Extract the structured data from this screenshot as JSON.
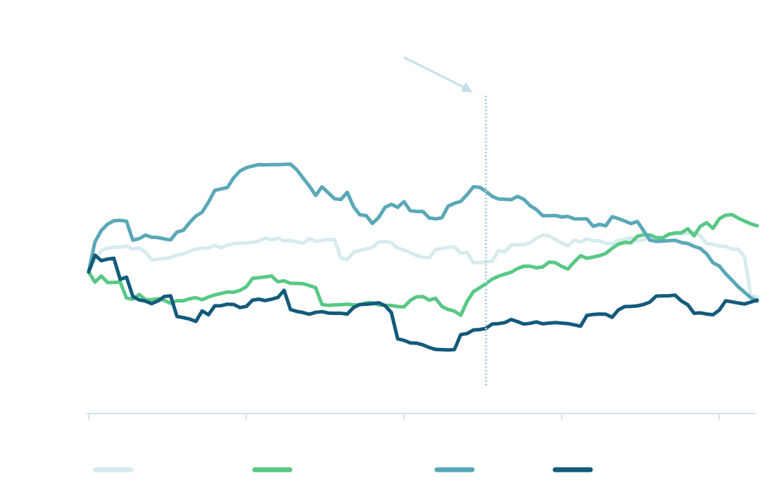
{
  "chart_data": {
    "type": "line",
    "title": "",
    "xlabel": "",
    "ylabel": "",
    "ylim": [
      0,
      100
    ],
    "x_tick_count": 5,
    "marker_x": 63.0,
    "legend_position": "bottom",
    "colors": {
      "axis": "#d2e2ee",
      "marker": "#a9cde2"
    },
    "series": [
      {
        "color": "#d6ebee",
        "x": [
          0,
          1,
          2,
          3,
          4,
          5,
          6,
          7,
          8,
          9,
          10,
          11,
          12,
          13,
          14,
          15,
          16,
          17,
          18,
          19,
          20,
          21,
          22,
          23,
          24,
          25,
          26,
          27,
          28,
          29,
          30,
          31,
          32,
          33,
          34,
          35,
          36,
          37,
          38,
          39,
          40,
          41,
          42,
          43,
          44,
          45,
          46,
          47,
          48,
          49,
          50,
          51,
          52,
          53,
          54,
          55,
          56,
          57,
          58,
          59,
          60,
          61,
          62,
          63,
          64,
          65,
          66,
          67,
          68,
          69,
          70,
          71,
          72,
          73,
          74,
          75,
          76,
          77,
          78,
          79,
          80,
          81,
          82,
          83,
          84,
          85,
          86,
          87,
          88,
          89,
          90,
          91,
          92,
          93,
          94,
          95,
          96,
          97,
          98,
          99,
          100,
          101,
          102,
          103,
          104,
          105,
          106
        ],
        "values": [
          59.2,
          64.5,
          68.1,
          69.2,
          69.6,
          69.6,
          70.0,
          68.8,
          69.3,
          67.5,
          64.1,
          64.5,
          64.8,
          65.2,
          66.3,
          66.7,
          67.9,
          68.7,
          69.1,
          69.2,
          70.3,
          69.3,
          70.4,
          71.0,
          71.2,
          71.3,
          71.7,
          72.0,
          73.4,
          72.6,
          73.3,
          72.2,
          72.3,
          71.8,
          71.2,
          73.2,
          72.0,
          72.3,
          72.8,
          72.7,
          65.0,
          64.4,
          67.4,
          68.2,
          68.8,
          69.4,
          71.8,
          71.9,
          71.5,
          69.1,
          68.4,
          67.3,
          66.1,
          65.3,
          65.2,
          68.5,
          69.0,
          69.5,
          69.7,
          67.0,
          67.5,
          63.1,
          63.1,
          63.4,
          63.7,
          68.1,
          67.6,
          70.4,
          70.6,
          70.6,
          71.4,
          73.3,
          74.6,
          74.3,
          72.7,
          71.3,
          70.1,
          72.5,
          71.7,
          73.1,
          72.2,
          72.2,
          71.3,
          70.9,
          72.4,
          72.8,
          73.6,
          72.1,
          72.8,
          73.3,
          72.8,
          73.3,
          75.2,
          75.1,
          75.2,
          75.2,
          76.0,
          74.3,
          71.0,
          70.8,
          70.1,
          69.9,
          68.7,
          68.7,
          65.6,
          49.3,
          48.7
        ]
      },
      {
        "color": "#58c885",
        "x": [
          0,
          1,
          2,
          3,
          4,
          5,
          6,
          7,
          8,
          9,
          10,
          11,
          12,
          13,
          14,
          15,
          16,
          17,
          18,
          19,
          20,
          21,
          22,
          23,
          24,
          25,
          26,
          27,
          28,
          29,
          30,
          31,
          32,
          33,
          34,
          35,
          36,
          37,
          38,
          39,
          40,
          41,
          42,
          43,
          44,
          45,
          46,
          47,
          48,
          49,
          50,
          51,
          52,
          53,
          54,
          55,
          56,
          57,
          58,
          59,
          60,
          61,
          62,
          63,
          64,
          65,
          66,
          67,
          68,
          69,
          70,
          71,
          72,
          73,
          74,
          75,
          76,
          77,
          78,
          79,
          80,
          81,
          82,
          83,
          84,
          85,
          86,
          87,
          88,
          89,
          90,
          91,
          92,
          93,
          94,
          95,
          96,
          97,
          98,
          99,
          100,
          101,
          102,
          103,
          104,
          105,
          106
        ],
        "values": [
          59.2,
          54.9,
          57.5,
          54.8,
          54.8,
          55.0,
          48.3,
          47.8,
          49.8,
          47.6,
          47.6,
          48.0,
          47.3,
          46.1,
          47.2,
          47.1,
          48.0,
          48.4,
          47.6,
          48.7,
          49.6,
          50.2,
          50.8,
          50.7,
          51.5,
          53.0,
          56.5,
          56.8,
          57.1,
          57.5,
          55.1,
          55.5,
          54.4,
          54.4,
          54.3,
          53.5,
          52.6,
          45.6,
          45.2,
          45.4,
          45.5,
          45.7,
          45.4,
          45.4,
          46.3,
          46.3,
          45.4,
          45.2,
          45.2,
          44.7,
          44.6,
          47.3,
          48.8,
          48.9,
          47.4,
          48.2,
          44.8,
          43.5,
          42.8,
          41.1,
          46.8,
          50.9,
          52.6,
          54.3,
          56.2,
          57.4,
          58.3,
          59.1,
          60.6,
          61.6,
          61.6,
          60.9,
          61.3,
          63.3,
          63.1,
          61.5,
          60.4,
          63.4,
          66.0,
          64.9,
          65.4,
          66.0,
          66.9,
          69.1,
          70.8,
          71.6,
          71.4,
          74.1,
          74.7,
          74.7,
          73.6,
          73.4,
          74.9,
          75.5,
          75.6,
          77.3,
          74.3,
          78.3,
          79.8,
          77.4,
          81.4,
          82.9,
          83.2,
          81.7,
          80.5,
          79.3,
          78.5
        ]
      },
      {
        "color": "#5aa8b7",
        "x": [
          0,
          1,
          2,
          3,
          4,
          5,
          6,
          7,
          8,
          9,
          10,
          11,
          12,
          13,
          14,
          15,
          16,
          17,
          18,
          19,
          20,
          21,
          22,
          23,
          24,
          25,
          26,
          27,
          28,
          29,
          30,
          31,
          32,
          33,
          34,
          35,
          36,
          37,
          38,
          39,
          40,
          41,
          42,
          43,
          44,
          45,
          46,
          47,
          48,
          49,
          50,
          51,
          52,
          53,
          54,
          55,
          56,
          57,
          58,
          59,
          60,
          61,
          62,
          63,
          64,
          65,
          66,
          67,
          68,
          69,
          70,
          71,
          72,
          73,
          74,
          75,
          76,
          77,
          78,
          79,
          80,
          81,
          82,
          83,
          84,
          85,
          86,
          87,
          88,
          89,
          90,
          91,
          92,
          93,
          94,
          95,
          96,
          97,
          98,
          99,
          100,
          101,
          102,
          103,
          104,
          105,
          106
        ],
        "values": [
          59.2,
          71.8,
          76.5,
          79.2,
          80.6,
          80.8,
          80.4,
          72.5,
          73.1,
          74.6,
          73.7,
          73.6,
          73.0,
          72.6,
          75.9,
          76.6,
          79.8,
          82.6,
          84.2,
          88.4,
          93.3,
          93.9,
          94.5,
          98.6,
          101.4,
          102.8,
          103.5,
          104.1,
          104.0,
          104.1,
          104.1,
          104.2,
          104.3,
          101.9,
          98.5,
          95.1,
          91.2,
          94.8,
          92.3,
          89.8,
          89.5,
          92.5,
          86.5,
          83.1,
          82.8,
          79.5,
          82.0,
          86.2,
          87.5,
          86.2,
          88.6,
          84.8,
          84.5,
          84.5,
          81.8,
          81.4,
          81.8,
          86.7,
          87.9,
          88.7,
          91.5,
          94.8,
          94.6,
          92.9,
          90.8,
          89.7,
          89.6,
          89.4,
          90.8,
          89.6,
          86.9,
          85.3,
          82.7,
          82.7,
          82.8,
          82.2,
          82.4,
          81.4,
          81.4,
          81.4,
          78.3,
          79.1,
          78.5,
          82.3,
          81.5,
          80.5,
          79.4,
          80.3,
          76.4,
          72.5,
          72.0,
          72.1,
          72.3,
          72.4,
          71.5,
          71.1,
          69.9,
          69.0,
          66.8,
          63.0,
          61.7,
          58.5,
          55.8,
          53.0,
          50.7,
          48.4,
          46.9
        ]
      },
      {
        "color": "#135a7b",
        "x": [
          0,
          1,
          2,
          3,
          4,
          5,
          6,
          7,
          8,
          9,
          10,
          11,
          12,
          13,
          14,
          15,
          16,
          17,
          18,
          19,
          20,
          21,
          22,
          23,
          24,
          25,
          26,
          27,
          28,
          29,
          30,
          31,
          32,
          33,
          34,
          35,
          36,
          37,
          38,
          39,
          40,
          41,
          42,
          43,
          44,
          45,
          46,
          47,
          48,
          49,
          50,
          51,
          52,
          53,
          54,
          55,
          56,
          57,
          58,
          59,
          60,
          61,
          62,
          63,
          64,
          65,
          66,
          67,
          68,
          69,
          70,
          71,
          72,
          73,
          74,
          75,
          76,
          77,
          78,
          79,
          80,
          81,
          82,
          83,
          84,
          85,
          86,
          87,
          88,
          89,
          90,
          91,
          92,
          93,
          94,
          95,
          96,
          97,
          98,
          99,
          100,
          101,
          102,
          103,
          104,
          105,
          106
        ],
        "values": [
          59.2,
          66.2,
          63.9,
          64.6,
          64.9,
          56.1,
          57.0,
          49.0,
          47.5,
          47.0,
          45.9,
          47.1,
          48.9,
          49.2,
          40.6,
          40.1,
          39.5,
          38.5,
          42.9,
          41.3,
          45.0,
          45.1,
          45.7,
          45.6,
          44.3,
          44.8,
          47.4,
          47.8,
          47.2,
          47.8,
          48.5,
          51.5,
          43.5,
          42.7,
          42.2,
          41.5,
          42.3,
          42.6,
          42.0,
          41.9,
          41.9,
          41.6,
          44.3,
          45.6,
          45.7,
          45.9,
          46.3,
          45.1,
          42.2,
          31.2,
          30.6,
          29.5,
          29.4,
          28.7,
          27.6,
          26.8,
          26.7,
          26.6,
          26.7,
          33.0,
          33.4,
          34.9,
          35.1,
          35.6,
          37.4,
          37.6,
          38.0,
          39.3,
          38.4,
          37.4,
          37.7,
          38.3,
          37.5,
          37.8,
          38.0,
          37.8,
          37.6,
          37.1,
          36.5,
          41.0,
          41.4,
          41.6,
          41.5,
          40.2,
          43.3,
          44.7,
          44.8,
          45.0,
          45.6,
          46.6,
          49.1,
          49.2,
          49.2,
          49.5,
          47.0,
          45.5,
          41.9,
          42.1,
          41.6,
          41.3,
          43.2,
          47.1,
          46.7,
          46.2,
          45.8,
          46.6,
          47.4
        ]
      }
    ]
  }
}
